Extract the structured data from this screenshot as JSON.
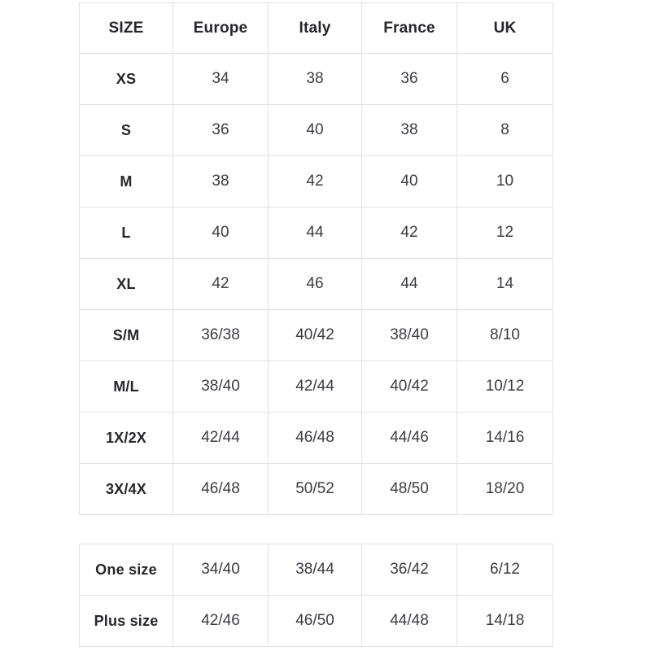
{
  "colors": {
    "background": "#ffffff",
    "border": "#e1e1e3",
    "header_text": "#26262e",
    "cell_text": "#3b3b45"
  },
  "size_table": {
    "headers": [
      "SIZE",
      "Europe",
      "Italy",
      "France",
      "UK"
    ],
    "rows": [
      {
        "label": "XS",
        "values": [
          "34",
          "38",
          "36",
          "6"
        ]
      },
      {
        "label": "S",
        "values": [
          "36",
          "40",
          "38",
          "8"
        ]
      },
      {
        "label": "M",
        "values": [
          "38",
          "42",
          "40",
          "10"
        ]
      },
      {
        "label": "L",
        "values": [
          "40",
          "44",
          "42",
          "12"
        ]
      },
      {
        "label": "XL",
        "values": [
          "42",
          "46",
          "44",
          "14"
        ]
      },
      {
        "label": "S/M",
        "values": [
          "36/38",
          "40/42",
          "38/40",
          "8/10"
        ]
      },
      {
        "label": "M/L",
        "values": [
          "38/40",
          "42/44",
          "40/42",
          "10/12"
        ]
      },
      {
        "label": "1X/2X",
        "values": [
          "42/44",
          "46/48",
          "44/46",
          "14/16"
        ]
      },
      {
        "label": "3X/4X",
        "values": [
          "46/48",
          "50/52",
          "48/50",
          "18/20"
        ]
      }
    ]
  },
  "special_table": {
    "rows": [
      {
        "label": "One size",
        "values": [
          "34/40",
          "38/44",
          "36/42",
          "6/12"
        ]
      },
      {
        "label": "Plus size",
        "values": [
          "42/46",
          "46/50",
          "44/48",
          "14/18"
        ]
      }
    ]
  }
}
